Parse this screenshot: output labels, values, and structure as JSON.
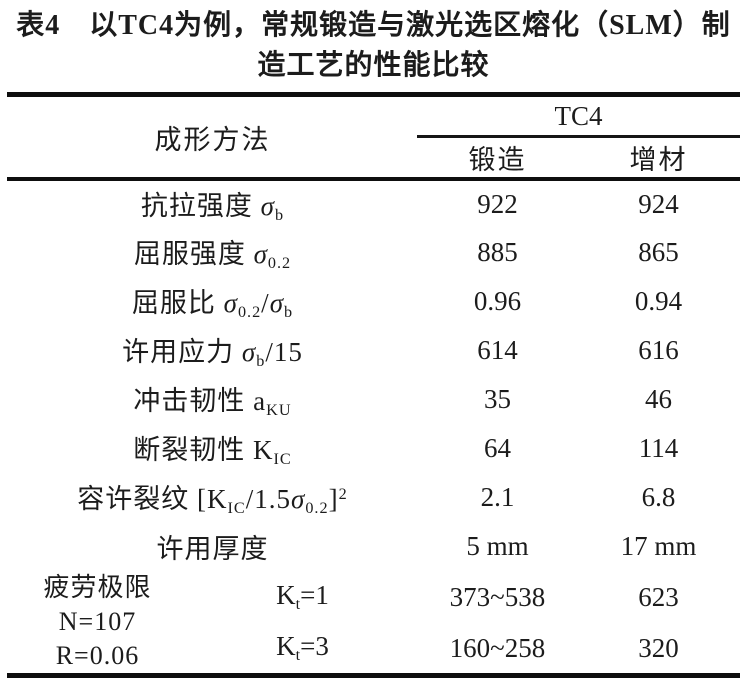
{
  "caption": {
    "line1": "表4　以TC4为例，常规锻造与激光选区熔化（SLM）制",
    "line2": "造工艺的性能比较"
  },
  "header": {
    "method_label": "成形方法",
    "group_label": "TC4",
    "forged_label": "锻造",
    "additive_label": "增材"
  },
  "table": {
    "rows": [
      {
        "label": [
          {
            "t": "抗拉强度 "
          },
          {
            "t": "σ",
            "i": true
          },
          {
            "t": "b",
            "sub": true
          }
        ],
        "forged": "922",
        "additive": "924"
      },
      {
        "label": [
          {
            "t": "屈服强度 "
          },
          {
            "t": "σ",
            "i": true
          },
          {
            "t": "0.2",
            "sub": true
          }
        ],
        "forged": "885",
        "additive": "865"
      },
      {
        "label": [
          {
            "t": "屈服比 "
          },
          {
            "t": "σ",
            "i": true
          },
          {
            "t": "0.2",
            "sub": true
          },
          {
            "t": "/"
          },
          {
            "t": "σ",
            "i": true
          },
          {
            "t": "b",
            "sub": true
          }
        ],
        "forged": "0.96",
        "additive": "0.94"
      },
      {
        "label": [
          {
            "t": "许用应力 "
          },
          {
            "t": "σ",
            "i": true
          },
          {
            "t": "b",
            "sub": true
          },
          {
            "t": "/15"
          }
        ],
        "forged": "614",
        "additive": "616"
      },
      {
        "label": [
          {
            "t": "冲击韧性 a"
          },
          {
            "t": "KU",
            "sub": true
          }
        ],
        "forged": "35",
        "additive": "46"
      },
      {
        "label": [
          {
            "t": "断裂韧性 K"
          },
          {
            "t": "IC",
            "sub": true
          }
        ],
        "forged": "64",
        "additive": "114"
      },
      {
        "label": [
          {
            "t": "容许裂纹 [K"
          },
          {
            "t": "IC",
            "sub": true
          },
          {
            "t": "/1.5"
          },
          {
            "t": "σ",
            "i": true
          },
          {
            "t": "0.2",
            "sub": true
          },
          {
            "t": "]"
          },
          {
            "t": "2",
            "sup": true
          }
        ],
        "forged": "2.1",
        "additive": "6.8"
      },
      {
        "label": [
          {
            "t": "许用厚度"
          }
        ],
        "forged": "5 mm",
        "additive": "17 mm"
      }
    ],
    "fatigue": {
      "group_lines": [
        "疲劳极限",
        "N=107",
        "R=0.06"
      ],
      "rows": [
        {
          "k": [
            {
              "t": "K"
            },
            {
              "t": "t",
              "sub": true
            },
            {
              "t": "=1"
            }
          ],
          "forged": "373~538",
          "additive": "623"
        },
        {
          "k": [
            {
              "t": "K"
            },
            {
              "t": "t",
              "sub": true
            },
            {
              "t": "=3"
            }
          ],
          "forged": "160~258",
          "additive": "320"
        }
      ]
    }
  },
  "colors": {
    "text": "#1c1c1c",
    "rule": "#0e0e0e",
    "background": "#ffffff"
  }
}
